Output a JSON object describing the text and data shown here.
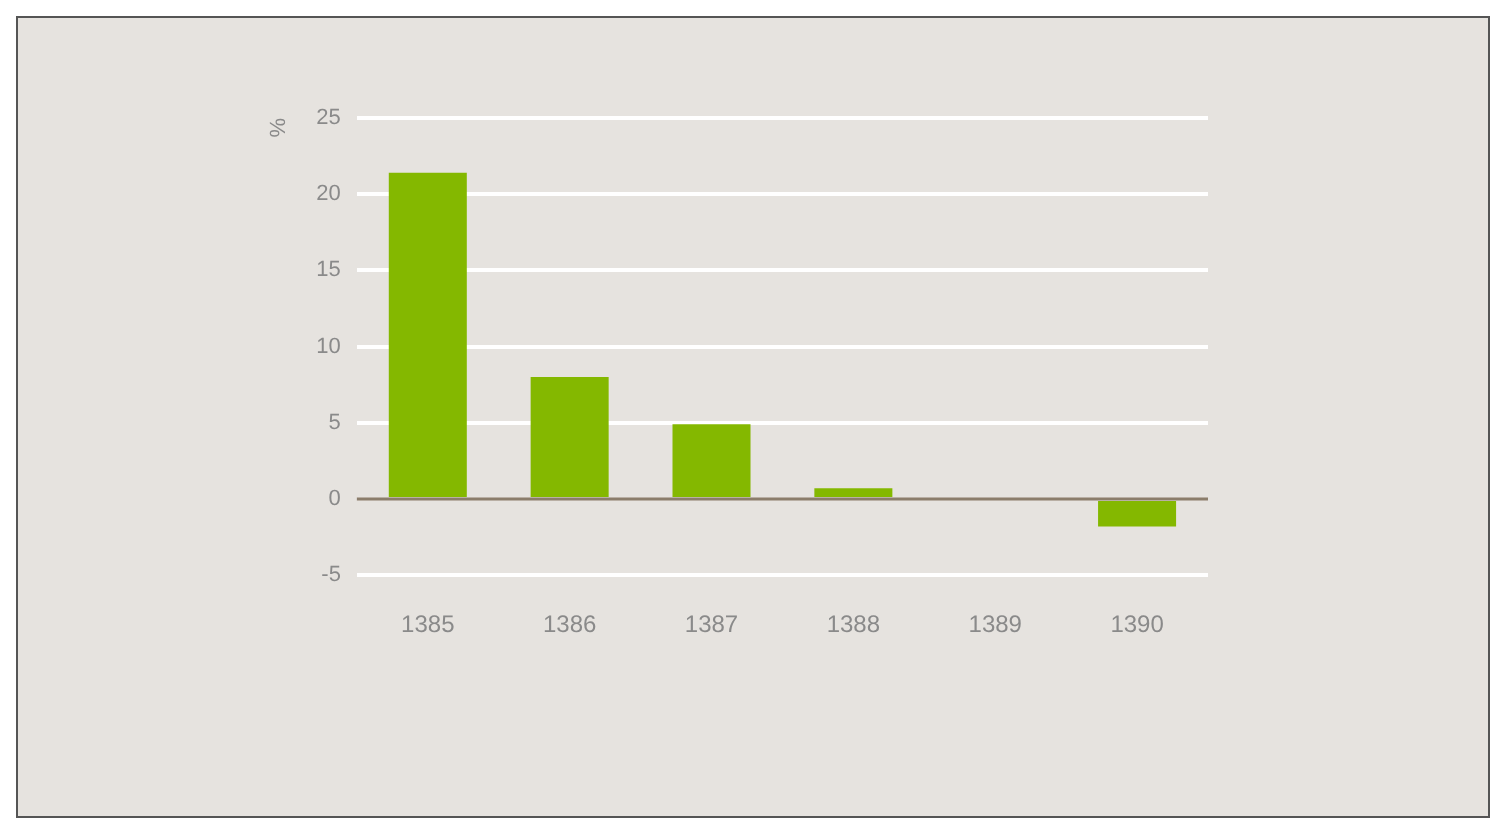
{
  "chart_data": {
    "type": "bar",
    "ylabel": "%",
    "categories": [
      "1385",
      "1386",
      "1387",
      "1388",
      "1389",
      "1390"
    ],
    "values": [
      21.4,
      8,
      4.9,
      0.7,
      0,
      -1.8
    ],
    "color": "#84b800",
    "ylim": [
      -5,
      25
    ],
    "yticks": [
      -5,
      0,
      5,
      10,
      15,
      20,
      25
    ],
    "grid": "y",
    "legend": false
  }
}
